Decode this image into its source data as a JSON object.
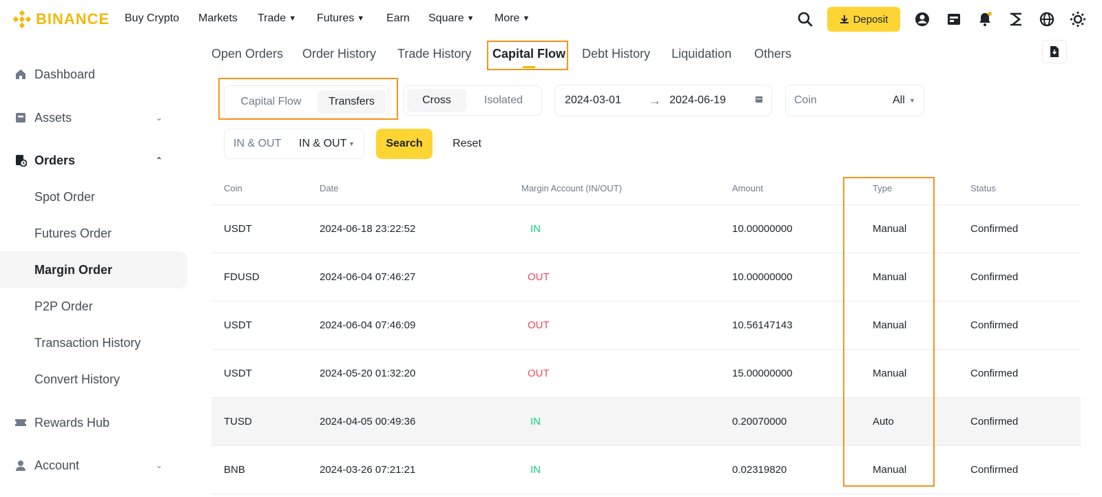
{
  "brand": {
    "name": "BINANCE",
    "color": "#f0b90b"
  },
  "nav": {
    "items": [
      "Buy Crypto",
      "Markets",
      "Trade",
      "Futures",
      "Earn",
      "Square",
      "More"
    ],
    "deposit_label": "Deposit",
    "icons": [
      "search-icon",
      "user-icon",
      "wallet-icon",
      "bell-icon",
      "download-icon",
      "globe-icon",
      "theme-icon"
    ]
  },
  "sidebar": {
    "dashboard": "Dashboard",
    "assets": "Assets",
    "orders": "Orders",
    "order_items": [
      "Spot Order",
      "Futures Order",
      "Margin Order",
      "P2P Order",
      "Transaction History",
      "Convert History"
    ],
    "active_item": "Margin Order",
    "rewards": "Rewards Hub",
    "account": "Account"
  },
  "tabs": [
    "Open Orders",
    "Order History",
    "Trade History",
    "Capital Flow",
    "Debt History",
    "Liquidation",
    "Others"
  ],
  "active_tab": "Capital Flow",
  "filters": {
    "flow_options": [
      "Capital Flow",
      "Transfers"
    ],
    "flow_selected": "Transfers",
    "margin_options": [
      "Cross",
      "Isolated"
    ],
    "margin_selected": "Cross",
    "date_from": "2024-03-01",
    "date_to": "2024-06-19",
    "coin_label": "Coin",
    "coin_value": "All",
    "direction_label": "IN & OUT",
    "direction_value": "IN & OUT",
    "search_label": "Search",
    "reset_label": "Reset"
  },
  "table": {
    "headers": [
      "Coin",
      "Date",
      "Margin Account (IN/OUT)",
      "Amount",
      "Type",
      "Status"
    ],
    "rows": [
      {
        "coin": "USDT",
        "date": "2024-06-18 23:22:52",
        "direction": "IN",
        "amount": "10.00000000",
        "type": "Manual",
        "status": "Confirmed"
      },
      {
        "coin": "FDUSD",
        "date": "2024-06-04 07:46:27",
        "direction": "OUT",
        "amount": "10.00000000",
        "type": "Manual",
        "status": "Confirmed"
      },
      {
        "coin": "USDT",
        "date": "2024-06-04 07:46:09",
        "direction": "OUT",
        "amount": "10.56147143",
        "type": "Manual",
        "status": "Confirmed"
      },
      {
        "coin": "USDT",
        "date": "2024-05-20 01:32:20",
        "direction": "OUT",
        "amount": "15.00000000",
        "type": "Manual",
        "status": "Confirmed"
      },
      {
        "coin": "TUSD",
        "date": "2024-04-05 00:49:36",
        "direction": "IN",
        "amount": "0.20070000",
        "type": "Auto",
        "status": "Confirmed"
      },
      {
        "coin": "BNB",
        "date": "2024-03-26 07:21:21",
        "direction": "IN",
        "amount": "0.02319820",
        "type": "Manual",
        "status": "Confirmed"
      }
    ]
  },
  "colors": {
    "accent": "#fcd535",
    "in": "#0ecb81",
    "out": "#f6465d",
    "highlight": "#f7931a"
  }
}
